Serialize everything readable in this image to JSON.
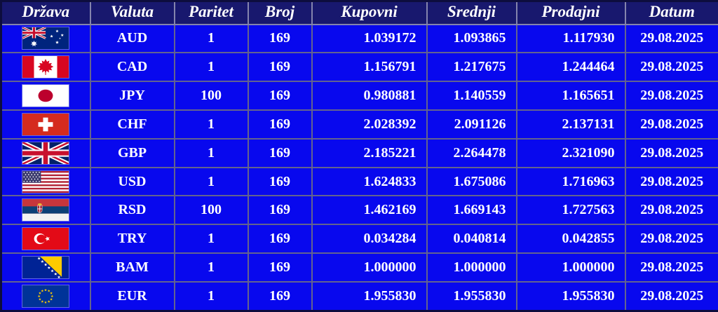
{
  "colors": {
    "header_bg": "#18186e",
    "row_bg": "#0808ee",
    "grid": "#63638f",
    "header_grid": "#8484ad",
    "outer_border": "#0d0d3d",
    "text": "#ffffff"
  },
  "table": {
    "columns": [
      {
        "key": "drzava",
        "label": "Država"
      },
      {
        "key": "valuta",
        "label": "Valuta"
      },
      {
        "key": "paritet",
        "label": "Paritet"
      },
      {
        "key": "broj",
        "label": "Broj"
      },
      {
        "key": "kupovni",
        "label": "Kupovni"
      },
      {
        "key": "srednji",
        "label": "Srednji"
      },
      {
        "key": "prodajni",
        "label": "Prodajni"
      },
      {
        "key": "datum",
        "label": "Datum"
      }
    ],
    "rows": [
      {
        "flag": "flag-australia",
        "valuta": "AUD",
        "paritet": "1",
        "broj": "169",
        "kupovni": "1.039172",
        "srednji": "1.093865",
        "prodajni": "1.117930",
        "datum": "29.08.2025"
      },
      {
        "flag": "flag-canada",
        "valuta": "CAD",
        "paritet": "1",
        "broj": "169",
        "kupovni": "1.156791",
        "srednji": "1.217675",
        "prodajni": "1.244464",
        "datum": "29.08.2025"
      },
      {
        "flag": "flag-japan",
        "valuta": "JPY",
        "paritet": "100",
        "broj": "169",
        "kupovni": "0.980881",
        "srednji": "1.140559",
        "prodajni": "1.165651",
        "datum": "29.08.2025"
      },
      {
        "flag": "flag-switzerland",
        "valuta": "CHF",
        "paritet": "1",
        "broj": "169",
        "kupovni": "2.028392",
        "srednji": "2.091126",
        "prodajni": "2.137131",
        "datum": "29.08.2025"
      },
      {
        "flag": "flag-uk",
        "valuta": "GBP",
        "paritet": "1",
        "broj": "169",
        "kupovni": "2.185221",
        "srednji": "2.264478",
        "prodajni": "2.321090",
        "datum": "29.08.2025"
      },
      {
        "flag": "flag-usa",
        "valuta": "USD",
        "paritet": "1",
        "broj": "169",
        "kupovni": "1.624833",
        "srednji": "1.675086",
        "prodajni": "1.716963",
        "datum": "29.08.2025"
      },
      {
        "flag": "flag-serbia",
        "valuta": "RSD",
        "paritet": "100",
        "broj": "169",
        "kupovni": "1.462169",
        "srednji": "1.669143",
        "prodajni": "1.727563",
        "datum": "29.08.2025"
      },
      {
        "flag": "flag-turkey",
        "valuta": "TRY",
        "paritet": "1",
        "broj": "169",
        "kupovni": "0.034284",
        "srednji": "0.040814",
        "prodajni": "0.042855",
        "datum": "29.08.2025"
      },
      {
        "flag": "flag-bosnia",
        "valuta": "BAM",
        "paritet": "1",
        "broj": "169",
        "kupovni": "1.000000",
        "srednji": "1.000000",
        "prodajni": "1.000000",
        "datum": "29.08.2025"
      },
      {
        "flag": "flag-eu",
        "valuta": "EUR",
        "paritet": "1",
        "broj": "169",
        "kupovni": "1.955830",
        "srednji": "1.955830",
        "prodajni": "1.955830",
        "datum": "29.08.2025"
      }
    ]
  }
}
